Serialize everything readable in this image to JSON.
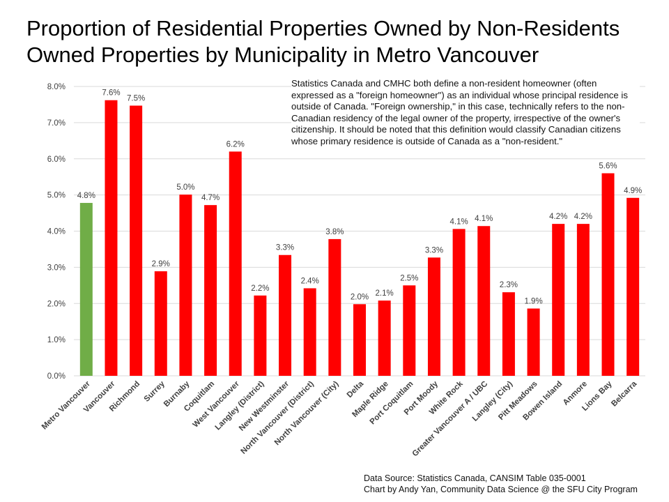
{
  "chart_data": {
    "type": "bar",
    "title": "Proportion of Residential Properties Owned by Non-Residents",
    "subtitle": "Owned Properties by Municipality in Metro Vancouver",
    "xlabel": "",
    "ylabel": "",
    "ylim": [
      0,
      8
    ],
    "yticks": [
      "0.0%",
      "1.0%",
      "2.0%",
      "3.0%",
      "4.0%",
      "5.0%",
      "6.0%",
      "7.0%",
      "8.0%"
    ],
    "grid": true,
    "categories": [
      "Metro Vancouver",
      "Vancouver",
      "Richmond",
      "Surrey",
      "Burnaby",
      "Coquitlam",
      "West Vancouver",
      "Langley (District)",
      "New Westminster",
      "North Vancouver (District)",
      "North Vancouver (City)",
      "Delta",
      "Maple Ridge",
      "Port Coquitlam",
      "Port Moody",
      "White Rock",
      "Greater Vancouver A / UBC",
      "Langley (City)",
      "Pitt Meadows",
      "Bowen Island",
      "Anmore",
      "Lions Bay",
      "Belcarra"
    ],
    "values": [
      4.78,
      7.62,
      7.47,
      2.89,
      5.01,
      4.72,
      6.2,
      2.22,
      3.34,
      2.42,
      3.78,
      1.98,
      2.08,
      2.5,
      3.27,
      4.06,
      4.14,
      2.31,
      1.86,
      4.2,
      4.2,
      5.6,
      4.92
    ],
    "labels": [
      "4.8%",
      "7.6%",
      "7.5%",
      "2.9%",
      "5.0%",
      "4.7%",
      "6.2%",
      "2.2%",
      "3.3%",
      "2.4%",
      "3.8%",
      "2.0%",
      "2.1%",
      "2.5%",
      "3.3%",
      "4.1%",
      "4.1%",
      "2.3%",
      "1.9%",
      "4.2%",
      "4.2%",
      "5.6%",
      "4.9%"
    ],
    "colors": [
      "#70ad47",
      "#ff0000",
      "#ff0000",
      "#ff0000",
      "#ff0000",
      "#ff0000",
      "#ff0000",
      "#ff0000",
      "#ff0000",
      "#ff0000",
      "#ff0000",
      "#ff0000",
      "#ff0000",
      "#ff0000",
      "#ff0000",
      "#ff0000",
      "#ff0000",
      "#ff0000",
      "#ff0000",
      "#ff0000",
      "#ff0000",
      "#ff0000",
      "#ff0000"
    ],
    "annotation": "Statistics Canada and CMHC both define a non-resident homeowner (often expressed as a \"foreign homeowner\") as an individual whose principal residence is outside of Canada. \"Foreign ownership,\" in this case, technically refers to the non-Canadian residency of the legal owner of the property, irrespective of the owner's citizenship. It should be noted that this definition would classify Canadian citizens whose primary residence is outside of Canada as a \"non-resident.\"",
    "source_line1": "Data Source: Statistics Canada, CANSIM Table 035-0001",
    "source_line2": "Chart by Andy Yan, Community Data Science @ the SFU City Program"
  }
}
